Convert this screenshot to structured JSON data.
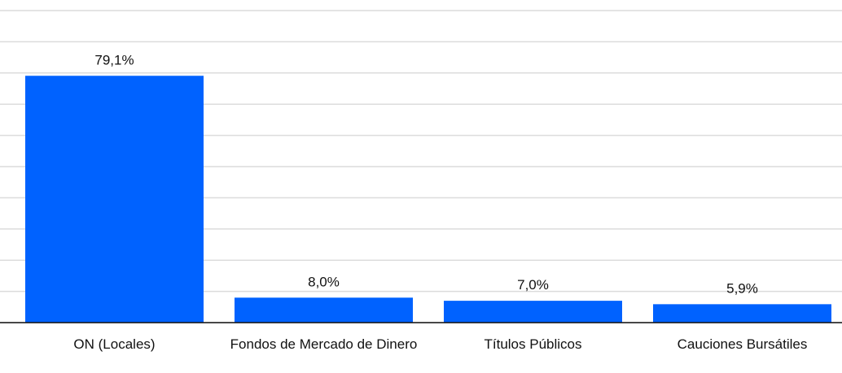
{
  "chart_data": {
    "type": "bar",
    "categories": [
      "ON (Locales)",
      "Fondos de Mercado de Dinero",
      "Títulos Públicos",
      "Cauciones Bursátiles"
    ],
    "values": [
      79.1,
      8.0,
      7.0,
      5.9
    ],
    "value_labels": [
      "79,1%",
      "8,0%",
      "7,0%",
      "5,9%"
    ],
    "color": "#0062ff",
    "ylim": [
      0,
      100
    ],
    "yticks": [
      0,
      10,
      20,
      30,
      40,
      50,
      60,
      70,
      80,
      90,
      100
    ],
    "grid": true
  }
}
